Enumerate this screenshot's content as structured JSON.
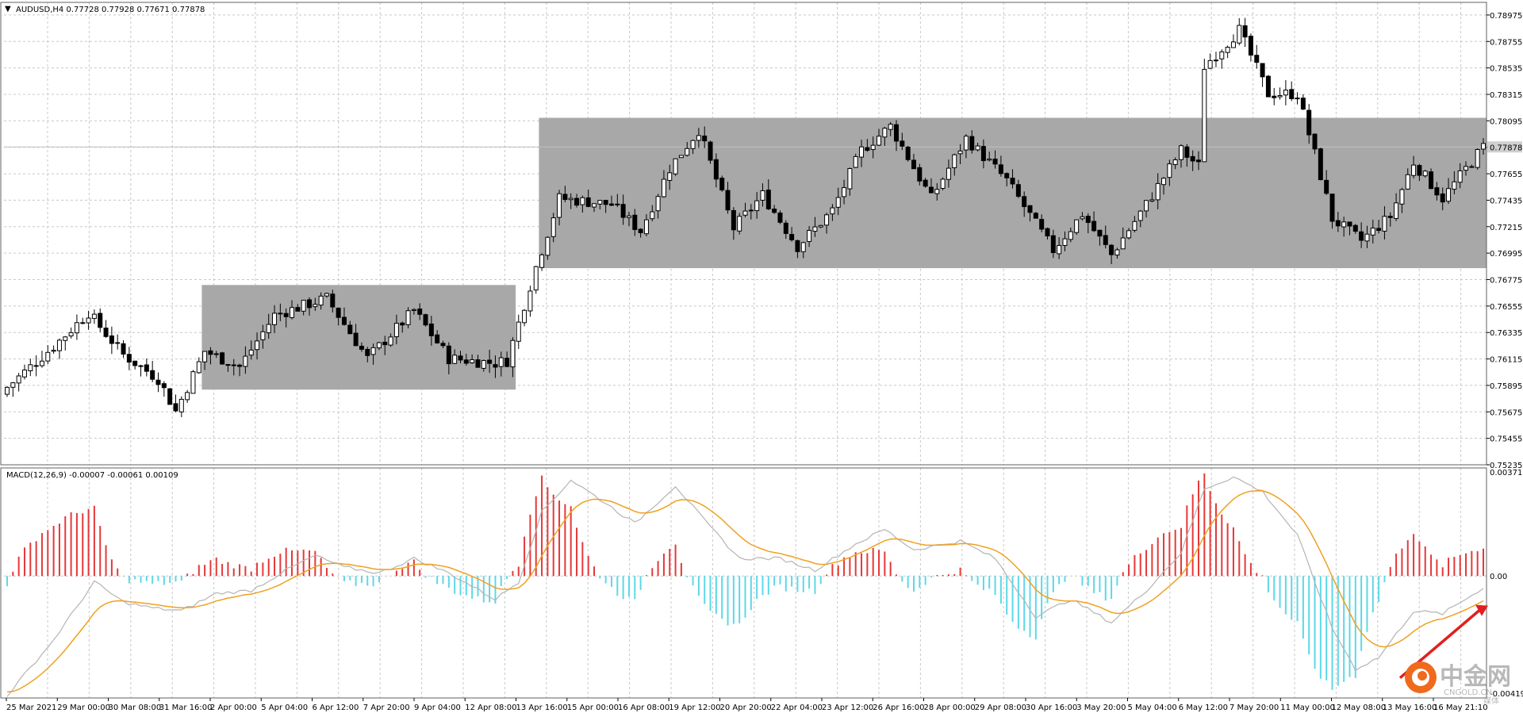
{
  "chart_data": [
    {
      "type": "candlestick",
      "title": "AUDUSD,H4 0.77728 0.77928 0.77671 0.77878",
      "symbol": "AUDUSD",
      "timeframe": "H4",
      "last_price_label": "0.77878",
      "ylim": [
        0.75235,
        0.7908
      ],
      "y_ticks": [
        "0.78975",
        "0.78755",
        "0.78535",
        "0.78315",
        "0.78095",
        "0.77875",
        "0.77655",
        "0.77435",
        "0.77215",
        "0.76995",
        "0.76775",
        "0.76555",
        "0.76335",
        "0.76115",
        "0.75895",
        "0.75675",
        "0.75455",
        "0.75235"
      ],
      "x_ticks": [
        "25 Mar 2021",
        "29 Mar 00:00",
        "30 Mar 08:00",
        "31 Mar 16:00",
        "2 Apr 00:00",
        "5 Apr 04:00",
        "6 Apr 12:00",
        "7 Apr 20:00",
        "9 Apr 04:00",
        "12 Apr 08:00",
        "13 Apr 16:00",
        "15 Apr 00:00",
        "16 Apr 08:00",
        "19 Apr 12:00",
        "20 Apr 20:00",
        "22 Apr 04:00",
        "23 Apr 12:00",
        "26 Apr 16:00",
        "28 Apr 00:00",
        "29 Apr 08:00",
        "30 Apr 16:00",
        "3 May 20:00",
        "5 May 04:00",
        "6 May 12:00",
        "7 May 20:00",
        "11 May 00:00",
        "12 May 08:00",
        "13 May 16:00",
        "16 May 21:10"
      ],
      "num_bars": 255,
      "close_path": [
        {
          "bar": 0,
          "close": 0.7588
        },
        {
          "bar": 8,
          "close": 0.7622
        },
        {
          "bar": 14,
          "close": 0.765
        },
        {
          "bar": 20,
          "close": 0.7615
        },
        {
          "bar": 26,
          "close": 0.7595
        },
        {
          "bar": 29,
          "close": 0.7568
        },
        {
          "bar": 34,
          "close": 0.7618
        },
        {
          "bar": 40,
          "close": 0.7605
        },
        {
          "bar": 46,
          "close": 0.7648
        },
        {
          "bar": 55,
          "close": 0.7662
        },
        {
          "bar": 62,
          "close": 0.7612
        },
        {
          "bar": 70,
          "close": 0.7652
        },
        {
          "bar": 76,
          "close": 0.7612
        },
        {
          "bar": 84,
          "close": 0.7608
        },
        {
          "bar": 86,
          "close": 0.761
        },
        {
          "bar": 91,
          "close": 0.7688
        },
        {
          "bar": 95,
          "close": 0.7745
        },
        {
          "bar": 104,
          "close": 0.774
        },
        {
          "bar": 109,
          "close": 0.7718
        },
        {
          "bar": 114,
          "close": 0.777
        },
        {
          "bar": 119,
          "close": 0.7802
        },
        {
          "bar": 125,
          "close": 0.772
        },
        {
          "bar": 130,
          "close": 0.7748
        },
        {
          "bar": 136,
          "close": 0.7705
        },
        {
          "bar": 142,
          "close": 0.7735
        },
        {
          "bar": 147,
          "close": 0.7785
        },
        {
          "bar": 152,
          "close": 0.7805
        },
        {
          "bar": 159,
          "close": 0.7745
        },
        {
          "bar": 165,
          "close": 0.7795
        },
        {
          "bar": 172,
          "close": 0.776
        },
        {
          "bar": 180,
          "close": 0.7702
        },
        {
          "bar": 185,
          "close": 0.7732
        },
        {
          "bar": 190,
          "close": 0.7698
        },
        {
          "bar": 196,
          "close": 0.774
        },
        {
          "bar": 202,
          "close": 0.7785
        },
        {
          "bar": 205,
          "close": 0.7772
        },
        {
          "bar": 206,
          "close": 0.7855
        },
        {
          "bar": 212,
          "close": 0.7885
        },
        {
          "bar": 217,
          "close": 0.7832
        },
        {
          "bar": 222,
          "close": 0.7832
        },
        {
          "bar": 225,
          "close": 0.7782
        },
        {
          "bar": 228,
          "close": 0.7728
        },
        {
          "bar": 233,
          "close": 0.771
        },
        {
          "bar": 238,
          "close": 0.773
        },
        {
          "bar": 242,
          "close": 0.7775
        },
        {
          "bar": 247,
          "close": 0.7745
        },
        {
          "bar": 254,
          "close": 0.7788
        }
      ],
      "consolidation_boxes": [
        {
          "from_bar": 34,
          "to_bar": 87,
          "upper": 0.7673,
          "lower": 0.7586
        },
        {
          "from_bar": 92,
          "to_bar": 254,
          "upper": 0.7812,
          "lower": 0.7687
        }
      ],
      "colors": {
        "bull_body": "#ffffff",
        "bear_body": "#000000",
        "wick": "#000000",
        "box_fill": "#a8a8a8",
        "grid": "#c8c8c8",
        "price_line": "#c0c0c0"
      }
    },
    {
      "type": "macd",
      "title": "MACD(12,26,9) -0.00007 -0.00061 0.00109",
      "ylim": [
        -0.00419,
        0.00371
      ],
      "y_ticks": [
        "0.00371",
        "0.00",
        "-0.00419"
      ],
      "macd_path": [
        {
          "bar": 0,
          "value": -0.0041
        },
        {
          "bar": 8,
          "value": -0.0022
        },
        {
          "bar": 15,
          "value": -0.0002
        },
        {
          "bar": 20,
          "value": -0.0009
        },
        {
          "bar": 25,
          "value": -0.0011
        },
        {
          "bar": 30,
          "value": -0.0012
        },
        {
          "bar": 36,
          "value": -0.0006
        },
        {
          "bar": 42,
          "value": -0.0005
        },
        {
          "bar": 48,
          "value": 0.0002
        },
        {
          "bar": 53,
          "value": 0.0007
        },
        {
          "bar": 58,
          "value": 0.0003
        },
        {
          "bar": 64,
          "value": 0.0001
        },
        {
          "bar": 70,
          "value": 0.0006
        },
        {
          "bar": 76,
          "value": 0.0001
        },
        {
          "bar": 84,
          "value": -0.0008
        },
        {
          "bar": 88,
          "value": -0.0002
        },
        {
          "bar": 92,
          "value": 0.0022
        },
        {
          "bar": 97,
          "value": 0.0033
        },
        {
          "bar": 103,
          "value": 0.0025
        },
        {
          "bar": 108,
          "value": 0.0018
        },
        {
          "bar": 115,
          "value": 0.0031
        },
        {
          "bar": 120,
          "value": 0.0019
        },
        {
          "bar": 126,
          "value": 0.0006
        },
        {
          "bar": 133,
          "value": 0.0006
        },
        {
          "bar": 139,
          "value": 0.0002
        },
        {
          "bar": 146,
          "value": 0.0011
        },
        {
          "bar": 151,
          "value": 0.0016
        },
        {
          "bar": 156,
          "value": 0.0009
        },
        {
          "bar": 164,
          "value": 0.0012
        },
        {
          "bar": 170,
          "value": 0.0006
        },
        {
          "bar": 177,
          "value": -0.0014
        },
        {
          "bar": 183,
          "value": -0.0008
        },
        {
          "bar": 190,
          "value": -0.0016
        },
        {
          "bar": 196,
          "value": -0.0005
        },
        {
          "bar": 202,
          "value": 0.0008
        },
        {
          "bar": 206,
          "value": 0.003
        },
        {
          "bar": 211,
          "value": 0.0034
        },
        {
          "bar": 216,
          "value": 0.0029
        },
        {
          "bar": 222,
          "value": 0.0014
        },
        {
          "bar": 228,
          "value": -0.0018
        },
        {
          "bar": 232,
          "value": -0.0032
        },
        {
          "bar": 236,
          "value": -0.0028
        },
        {
          "bar": 242,
          "value": -0.0012
        },
        {
          "bar": 247,
          "value": -0.0013
        },
        {
          "bar": 254,
          "value": -0.0004
        }
      ],
      "colors": {
        "hist_pos": "#e63838",
        "hist_neg": "#5cd8e8",
        "macd_line": "#b4b4b4",
        "signal_line": "#f0a020",
        "arrow": "#e02020"
      }
    }
  ],
  "watermark": {
    "cn": "中金网",
    "en": "CNGOLD.CN",
    "sub": "媒体"
  }
}
